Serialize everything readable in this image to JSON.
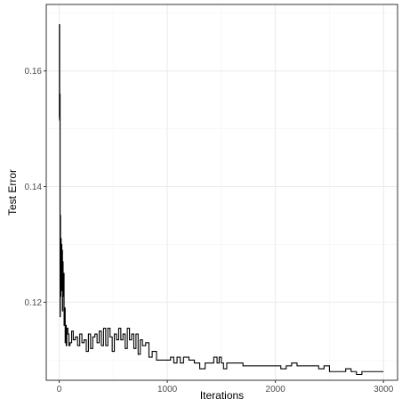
{
  "chart_data": {
    "type": "line",
    "title": "",
    "xlabel": "Iterations",
    "ylabel": "Test Error",
    "xlim": [
      -120,
      3130
    ],
    "ylim": [
      0.1065,
      0.1715
    ],
    "x_ticks": [
      0,
      1000,
      2000,
      3000
    ],
    "x_tick_labels": [
      "0",
      "1000",
      "2000",
      "3000"
    ],
    "y_ticks": [
      0.12,
      0.14,
      0.16
    ],
    "y_tick_labels": [
      "0.12",
      "0.14",
      "0.16"
    ],
    "grid": true,
    "legend": "none",
    "colors": {
      "line": "#000000",
      "panel_border": "#333333",
      "grid_major": "#ebebeb",
      "grid_minor": "#f5f5f5",
      "tick_text": "#4d4d4d"
    },
    "series": [
      {
        "x": [
          0,
          2,
          4,
          6,
          8,
          10,
          12,
          15,
          18,
          21,
          24,
          27,
          30,
          33,
          36,
          40,
          45,
          50,
          55,
          60,
          65,
          70,
          80,
          90,
          100,
          115,
          130,
          150,
          170,
          190,
          210,
          230,
          250,
          270,
          290,
          310,
          330,
          350,
          370,
          390,
          410,
          430,
          450,
          470,
          490,
          510,
          530,
          550,
          570,
          590,
          610,
          630,
          650,
          670,
          690,
          710,
          730,
          750,
          770,
          800,
          830,
          860,
          900,
          950,
          1000,
          1030,
          1060,
          1090,
          1120,
          1150,
          1200,
          1250,
          1300,
          1350,
          1400,
          1430,
          1460,
          1480,
          1500,
          1520,
          1550,
          1600,
          1700,
          1800,
          1900,
          2000,
          2050,
          2100,
          2150,
          2200,
          2250,
          2300,
          2350,
          2400,
          2450,
          2500,
          2550,
          2600,
          2650,
          2700,
          2750,
          2800,
          2850,
          2900,
          2950,
          3000
        ],
        "y": [
          0.152,
          0.168,
          0.1515,
          0.156,
          0.1175,
          0.135,
          0.121,
          0.131,
          0.125,
          0.13,
          0.122,
          0.129,
          0.1185,
          0.127,
          0.121,
          0.125,
          0.116,
          0.119,
          0.113,
          0.116,
          0.1125,
          0.1155,
          0.1145,
          0.1125,
          0.113,
          0.115,
          0.1135,
          0.114,
          0.1125,
          0.1145,
          0.113,
          0.1135,
          0.1115,
          0.1145,
          0.112,
          0.114,
          0.1145,
          0.113,
          0.115,
          0.1125,
          0.1155,
          0.1125,
          0.1155,
          0.114,
          0.1115,
          0.1145,
          0.1135,
          0.1155,
          0.1135,
          0.1145,
          0.112,
          0.1155,
          0.1135,
          0.1145,
          0.112,
          0.1145,
          0.111,
          0.1135,
          0.1125,
          0.113,
          0.1105,
          0.1115,
          0.11,
          0.11,
          0.11,
          0.1105,
          0.1095,
          0.1105,
          0.1095,
          0.1105,
          0.11,
          0.1095,
          0.1085,
          0.1095,
          0.1095,
          0.1105,
          0.1095,
          0.1105,
          0.1095,
          0.1085,
          0.1095,
          0.1095,
          0.109,
          0.109,
          0.109,
          0.109,
          0.1085,
          0.109,
          0.1095,
          0.109,
          0.109,
          0.109,
          0.109,
          0.1085,
          0.109,
          0.108,
          0.108,
          0.108,
          0.1085,
          0.108,
          0.1075,
          0.108,
          0.108,
          0.108,
          0.108,
          0.108
        ]
      }
    ]
  }
}
